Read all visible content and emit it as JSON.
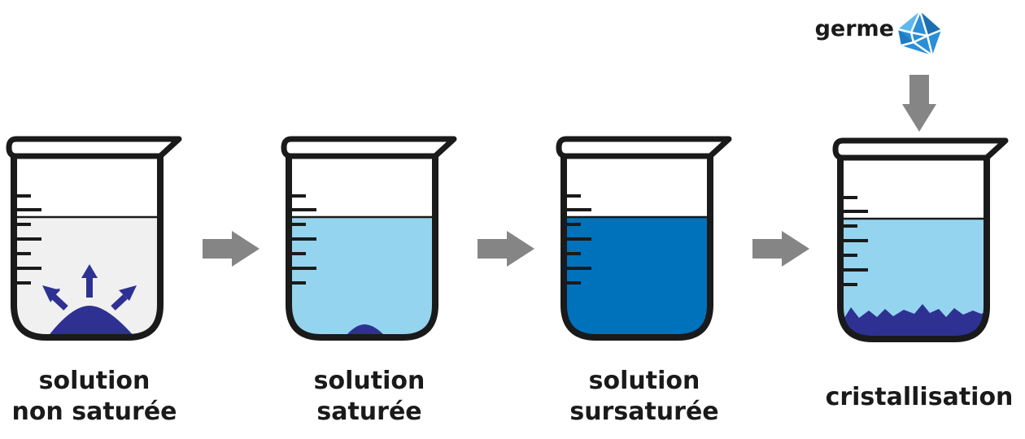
{
  "diagram": {
    "stages": [
      {
        "line1": "solution",
        "line2": "non saturée"
      },
      {
        "line1": "solution",
        "line2": "saturée"
      },
      {
        "line1": "solution",
        "line2": "sursaturée"
      },
      {
        "line1": "cristallisation"
      }
    ],
    "seed_label": "germe",
    "icons": {
      "beaker": "beaker-icon",
      "process_arrow": "right-arrow-icon",
      "drop_arrow": "down-arrow-icon",
      "dissolve_arrow": "up-arrow-icon",
      "seed": "crystal-icon"
    }
  },
  "colors": {
    "outline": "#1a1a1a",
    "empty_liquid": "#f0f0f0",
    "light_liquid": "#94d4ef",
    "dark_liquid": "#0072bc",
    "solid": "#2e3192",
    "arrow_gray": "#858585",
    "seed_blue": "#2a8fd6"
  }
}
